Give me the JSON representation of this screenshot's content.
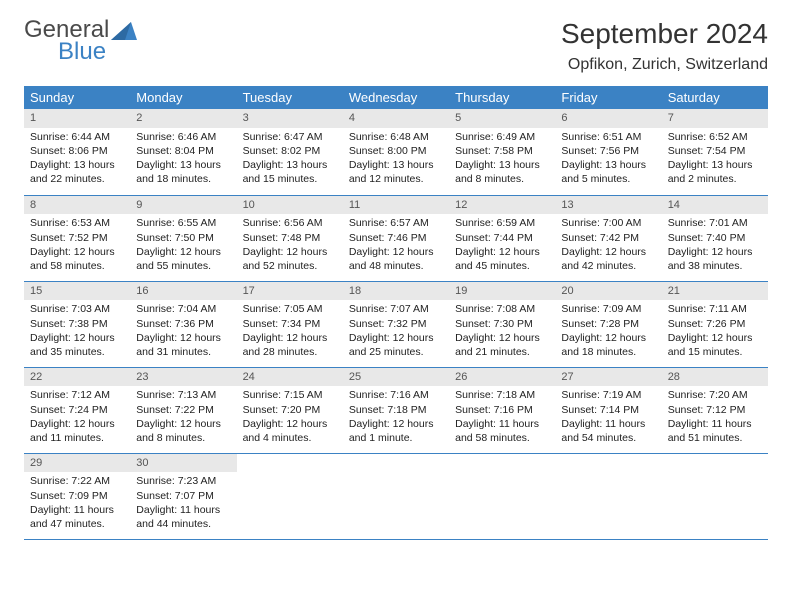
{
  "logo": {
    "line1": "General",
    "line2": "Blue"
  },
  "title": "September 2024",
  "location": "Opfikon, Zurich, Switzerland",
  "colors": {
    "header_blue": "#3b82c4",
    "daynum_bg": "#e8e8e8",
    "text": "#222222",
    "logo_gray": "#4a4a4a"
  },
  "calendar": {
    "type": "table",
    "weekdays": [
      "Sunday",
      "Monday",
      "Tuesday",
      "Wednesday",
      "Thursday",
      "Friday",
      "Saturday"
    ],
    "weeks": [
      [
        {
          "n": "1",
          "sr": "Sunrise: 6:44 AM",
          "ss": "Sunset: 8:06 PM",
          "d1": "Daylight: 13 hours",
          "d2": "and 22 minutes."
        },
        {
          "n": "2",
          "sr": "Sunrise: 6:46 AM",
          "ss": "Sunset: 8:04 PM",
          "d1": "Daylight: 13 hours",
          "d2": "and 18 minutes."
        },
        {
          "n": "3",
          "sr": "Sunrise: 6:47 AM",
          "ss": "Sunset: 8:02 PM",
          "d1": "Daylight: 13 hours",
          "d2": "and 15 minutes."
        },
        {
          "n": "4",
          "sr": "Sunrise: 6:48 AM",
          "ss": "Sunset: 8:00 PM",
          "d1": "Daylight: 13 hours",
          "d2": "and 12 minutes."
        },
        {
          "n": "5",
          "sr": "Sunrise: 6:49 AM",
          "ss": "Sunset: 7:58 PM",
          "d1": "Daylight: 13 hours",
          "d2": "and 8 minutes."
        },
        {
          "n": "6",
          "sr": "Sunrise: 6:51 AM",
          "ss": "Sunset: 7:56 PM",
          "d1": "Daylight: 13 hours",
          "d2": "and 5 minutes."
        },
        {
          "n": "7",
          "sr": "Sunrise: 6:52 AM",
          "ss": "Sunset: 7:54 PM",
          "d1": "Daylight: 13 hours",
          "d2": "and 2 minutes."
        }
      ],
      [
        {
          "n": "8",
          "sr": "Sunrise: 6:53 AM",
          "ss": "Sunset: 7:52 PM",
          "d1": "Daylight: 12 hours",
          "d2": "and 58 minutes."
        },
        {
          "n": "9",
          "sr": "Sunrise: 6:55 AM",
          "ss": "Sunset: 7:50 PM",
          "d1": "Daylight: 12 hours",
          "d2": "and 55 minutes."
        },
        {
          "n": "10",
          "sr": "Sunrise: 6:56 AM",
          "ss": "Sunset: 7:48 PM",
          "d1": "Daylight: 12 hours",
          "d2": "and 52 minutes."
        },
        {
          "n": "11",
          "sr": "Sunrise: 6:57 AM",
          "ss": "Sunset: 7:46 PM",
          "d1": "Daylight: 12 hours",
          "d2": "and 48 minutes."
        },
        {
          "n": "12",
          "sr": "Sunrise: 6:59 AM",
          "ss": "Sunset: 7:44 PM",
          "d1": "Daylight: 12 hours",
          "d2": "and 45 minutes."
        },
        {
          "n": "13",
          "sr": "Sunrise: 7:00 AM",
          "ss": "Sunset: 7:42 PM",
          "d1": "Daylight: 12 hours",
          "d2": "and 42 minutes."
        },
        {
          "n": "14",
          "sr": "Sunrise: 7:01 AM",
          "ss": "Sunset: 7:40 PM",
          "d1": "Daylight: 12 hours",
          "d2": "and 38 minutes."
        }
      ],
      [
        {
          "n": "15",
          "sr": "Sunrise: 7:03 AM",
          "ss": "Sunset: 7:38 PM",
          "d1": "Daylight: 12 hours",
          "d2": "and 35 minutes."
        },
        {
          "n": "16",
          "sr": "Sunrise: 7:04 AM",
          "ss": "Sunset: 7:36 PM",
          "d1": "Daylight: 12 hours",
          "d2": "and 31 minutes."
        },
        {
          "n": "17",
          "sr": "Sunrise: 7:05 AM",
          "ss": "Sunset: 7:34 PM",
          "d1": "Daylight: 12 hours",
          "d2": "and 28 minutes."
        },
        {
          "n": "18",
          "sr": "Sunrise: 7:07 AM",
          "ss": "Sunset: 7:32 PM",
          "d1": "Daylight: 12 hours",
          "d2": "and 25 minutes."
        },
        {
          "n": "19",
          "sr": "Sunrise: 7:08 AM",
          "ss": "Sunset: 7:30 PM",
          "d1": "Daylight: 12 hours",
          "d2": "and 21 minutes."
        },
        {
          "n": "20",
          "sr": "Sunrise: 7:09 AM",
          "ss": "Sunset: 7:28 PM",
          "d1": "Daylight: 12 hours",
          "d2": "and 18 minutes."
        },
        {
          "n": "21",
          "sr": "Sunrise: 7:11 AM",
          "ss": "Sunset: 7:26 PM",
          "d1": "Daylight: 12 hours",
          "d2": "and 15 minutes."
        }
      ],
      [
        {
          "n": "22",
          "sr": "Sunrise: 7:12 AM",
          "ss": "Sunset: 7:24 PM",
          "d1": "Daylight: 12 hours",
          "d2": "and 11 minutes."
        },
        {
          "n": "23",
          "sr": "Sunrise: 7:13 AM",
          "ss": "Sunset: 7:22 PM",
          "d1": "Daylight: 12 hours",
          "d2": "and 8 minutes."
        },
        {
          "n": "24",
          "sr": "Sunrise: 7:15 AM",
          "ss": "Sunset: 7:20 PM",
          "d1": "Daylight: 12 hours",
          "d2": "and 4 minutes."
        },
        {
          "n": "25",
          "sr": "Sunrise: 7:16 AM",
          "ss": "Sunset: 7:18 PM",
          "d1": "Daylight: 12 hours",
          "d2": "and 1 minute."
        },
        {
          "n": "26",
          "sr": "Sunrise: 7:18 AM",
          "ss": "Sunset: 7:16 PM",
          "d1": "Daylight: 11 hours",
          "d2": "and 58 minutes."
        },
        {
          "n": "27",
          "sr": "Sunrise: 7:19 AM",
          "ss": "Sunset: 7:14 PM",
          "d1": "Daylight: 11 hours",
          "d2": "and 54 minutes."
        },
        {
          "n": "28",
          "sr": "Sunrise: 7:20 AM",
          "ss": "Sunset: 7:12 PM",
          "d1": "Daylight: 11 hours",
          "d2": "and 51 minutes."
        }
      ],
      [
        {
          "n": "29",
          "sr": "Sunrise: 7:22 AM",
          "ss": "Sunset: 7:09 PM",
          "d1": "Daylight: 11 hours",
          "d2": "and 47 minutes."
        },
        {
          "n": "30",
          "sr": "Sunrise: 7:23 AM",
          "ss": "Sunset: 7:07 PM",
          "d1": "Daylight: 11 hours",
          "d2": "and 44 minutes."
        },
        null,
        null,
        null,
        null,
        null
      ]
    ]
  }
}
